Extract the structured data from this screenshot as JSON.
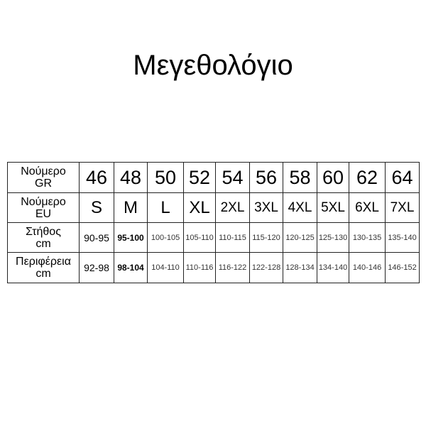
{
  "title": "Μεγεθολόγιο",
  "rows": [
    {
      "label": [
        "Νούμερο",
        "GR"
      ],
      "values": [
        "46",
        "48",
        "50",
        "52",
        "54",
        "56",
        "58",
        "60",
        "62",
        "64"
      ]
    },
    {
      "label": [
        "Νούμερο",
        "EU"
      ],
      "values": [
        "S",
        "M",
        "L",
        "XL",
        "2XL",
        "3XL",
        "4XL",
        "5XL",
        "6XL",
        "7XL"
      ]
    },
    {
      "label": [
        "Στήθος",
        "cm"
      ],
      "values": [
        "90-95",
        "95-100",
        "100-105",
        "105-110",
        "110-115",
        "115-120",
        "120-125",
        "125-130",
        "130-135",
        "135-140"
      ]
    },
    {
      "label": [
        "Περιφέρεια",
        "cm"
      ],
      "values": [
        "92-98",
        "98-104",
        "104-110",
        "110-116",
        "116-122",
        "122-128",
        "128-134",
        "134-140",
        "140-146",
        "146-152"
      ]
    }
  ]
}
